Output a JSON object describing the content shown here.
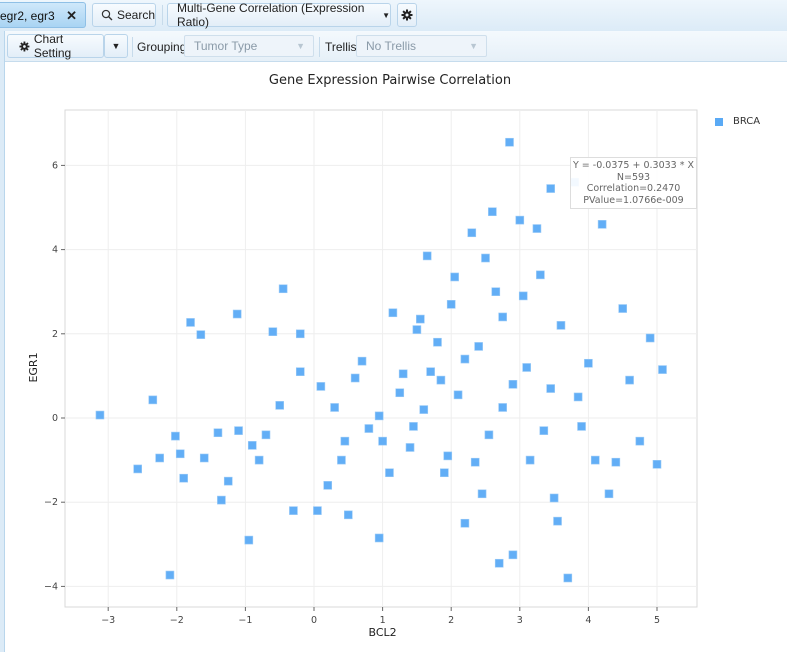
{
  "header": {
    "gene_tab_label": "egr2, egr3",
    "gene_tab_close": "✕",
    "search_label": "Search",
    "analysis_label": "Multi-Gene Correlation (Expression Ratio)",
    "analysis_caret": "▼"
  },
  "toolbar": {
    "chart_setting_label": "Chart Setting",
    "chart_setting_caret": "▼",
    "grouping_label": "Grouping",
    "grouping_value": "Tumor Type",
    "trellis_label": "Trellis",
    "trellis_value": "No Trellis",
    "select_caret": "▼"
  },
  "icons": {
    "search": "search-icon",
    "gear": "gear-icon",
    "close": "close-icon",
    "caret": "caret-down-icon"
  },
  "colors": {
    "point": "#5aaaf5",
    "accent": "#a9d4f3"
  },
  "regression": {
    "equation": "Y = -0.0375 + 0.3033 * X",
    "n": "N=593",
    "correlation": "Correlation=0.2470",
    "pvalue": "PValue=1.0766e-009"
  },
  "chart_data": {
    "type": "scatter",
    "title": "Gene Expression Pairwise Correlation",
    "xlabel": "BCL2",
    "ylabel": "EGR1",
    "xlim": [
      -3.6,
      5.6
    ],
    "ylim": [
      -4.5,
      7.2
    ],
    "xticks": [
      -3,
      -2,
      -1,
      0,
      1,
      2,
      3,
      4,
      5
    ],
    "yticks": [
      -4,
      -2,
      0,
      2,
      4,
      6
    ],
    "grid": true,
    "legend_position": "right",
    "series": [
      {
        "name": "BRCA",
        "points": [
          [
            -3.12,
            0.07
          ],
          [
            -2.57,
            -1.21
          ],
          [
            -2.35,
            0.43
          ],
          [
            -2.25,
            -0.95
          ],
          [
            -2.1,
            -3.73
          ],
          [
            -2.02,
            -0.43
          ],
          [
            -1.9,
            -1.43
          ],
          [
            -1.8,
            2.27
          ],
          [
            -1.65,
            1.98
          ],
          [
            -1.6,
            -0.95
          ],
          [
            -1.35,
            -1.95
          ],
          [
            -1.25,
            -1.5
          ],
          [
            -1.12,
            2.47
          ],
          [
            -1.1,
            -0.3
          ],
          [
            -0.95,
            -2.9
          ],
          [
            -0.9,
            -0.65
          ],
          [
            -0.8,
            -1.0
          ],
          [
            -0.6,
            2.05
          ],
          [
            -0.45,
            3.07
          ],
          [
            -0.3,
            -2.2
          ],
          [
            -0.2,
            2.0
          ],
          [
            0.05,
            -2.2
          ],
          [
            0.2,
            -1.6
          ],
          [
            0.4,
            -1.0
          ],
          [
            0.5,
            -2.3
          ],
          [
            0.6,
            0.95
          ],
          [
            0.8,
            -0.25
          ],
          [
            0.95,
            -2.85
          ],
          [
            1.1,
            -1.3
          ],
          [
            1.25,
            0.6
          ],
          [
            1.4,
            -0.7
          ],
          [
            1.5,
            2.1
          ],
          [
            1.65,
            3.85
          ],
          [
            1.8,
            1.8
          ],
          [
            1.95,
            -0.9
          ],
          [
            2.05,
            3.35
          ],
          [
            2.2,
            1.4
          ],
          [
            2.3,
            4.4
          ],
          [
            2.45,
            -1.8
          ],
          [
            2.6,
            4.9
          ],
          [
            2.7,
            -3.45
          ],
          [
            2.75,
            2.4
          ],
          [
            2.85,
            6.55
          ],
          [
            2.9,
            -3.25
          ],
          [
            3.0,
            4.7
          ],
          [
            3.1,
            1.2
          ],
          [
            3.25,
            4.5
          ],
          [
            3.35,
            -0.3
          ],
          [
            3.45,
            5.45
          ],
          [
            3.55,
            -2.45
          ],
          [
            3.7,
            -3.8
          ],
          [
            3.8,
            5.6
          ],
          [
            3.85,
            0.5
          ],
          [
            4.0,
            1.3
          ],
          [
            4.1,
            -1.0
          ],
          [
            4.2,
            4.6
          ],
          [
            4.3,
            -1.8
          ],
          [
            4.5,
            2.6
          ],
          [
            4.6,
            0.9
          ],
          [
            4.75,
            -0.55
          ],
          [
            4.9,
            1.9
          ],
          [
            5.0,
            -1.1
          ],
          [
            5.08,
            1.15
          ],
          [
            1.3,
            1.05
          ],
          [
            1.6,
            0.2
          ],
          [
            2.1,
            0.55
          ],
          [
            2.4,
            1.7
          ],
          [
            2.55,
            -0.4
          ],
          [
            2.9,
            0.8
          ],
          [
            3.15,
            -1.0
          ],
          [
            0.3,
            0.25
          ],
          [
            0.1,
            0.75
          ],
          [
            -0.5,
            0.3
          ],
          [
            -0.7,
            -0.4
          ],
          [
            1.0,
            -0.55
          ],
          [
            1.9,
            -1.3
          ],
          [
            2.2,
            -2.5
          ],
          [
            3.5,
            -1.9
          ],
          [
            3.6,
            2.2
          ],
          [
            2.0,
            2.7
          ],
          [
            1.15,
            2.5
          ],
          [
            0.7,
            1.35
          ],
          [
            1.7,
            1.1
          ],
          [
            2.65,
            3.0
          ],
          [
            3.3,
            3.4
          ],
          [
            1.45,
            -0.2
          ],
          [
            0.95,
            0.05
          ],
          [
            2.35,
            -1.05
          ],
          [
            3.9,
            -0.2
          ],
          [
            4.4,
            -1.05
          ],
          [
            -1.95,
            -0.85
          ],
          [
            -1.4,
            -0.35
          ],
          [
            -0.2,
            1.1
          ],
          [
            0.45,
            -0.55
          ],
          [
            1.85,
            0.9
          ],
          [
            2.75,
            0.25
          ],
          [
            3.05,
            2.9
          ],
          [
            3.45,
            0.7
          ],
          [
            2.5,
            3.8
          ],
          [
            1.55,
            2.35
          ]
        ]
      }
    ]
  }
}
